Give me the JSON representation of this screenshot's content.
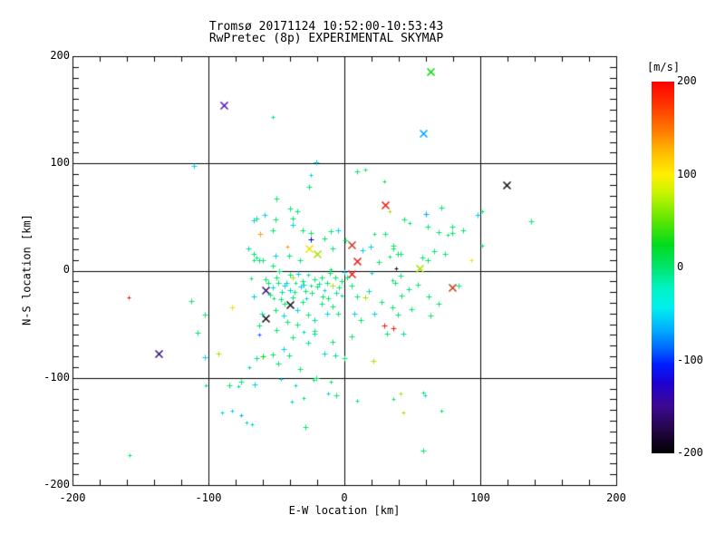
{
  "title": {
    "line1": "Tromsø 20171124 10:52:00-10:53:43",
    "line2": "RwPretec (8p) EXPERIMENTAL SKYMAP"
  },
  "axes": {
    "x_label": "E-W location [km]",
    "y_label": "N-S location [km]",
    "x_ticks": [
      "-200",
      "-100",
      "0",
      "100",
      "200"
    ],
    "y_ticks": [
      "200",
      "100",
      "0",
      "-100",
      "-200"
    ]
  },
  "colorbar": {
    "label": "[m/s]",
    "ticks": [
      "200",
      "100",
      "0",
      "-100",
      "-200"
    ],
    "value_range": [
      -200,
      200
    ],
    "stops": [
      [
        0.0,
        "#ff0000"
      ],
      [
        0.06,
        "#ff3300"
      ],
      [
        0.13,
        "#ff7700"
      ],
      [
        0.19,
        "#ffbb00"
      ],
      [
        0.25,
        "#ffee00"
      ],
      [
        0.3,
        "#c8f400"
      ],
      [
        0.37,
        "#62e600"
      ],
      [
        0.44,
        "#00dc1e"
      ],
      [
        0.5,
        "#00e46e"
      ],
      [
        0.56,
        "#00f4c8"
      ],
      [
        0.61,
        "#00eeee"
      ],
      [
        0.67,
        "#00aaff"
      ],
      [
        0.72,
        "#0064ff"
      ],
      [
        0.76,
        "#001eff"
      ],
      [
        0.81,
        "#1e00d2"
      ],
      [
        0.87,
        "#3c0896"
      ],
      [
        0.93,
        "#28064e"
      ],
      [
        1.0,
        "#000000"
      ]
    ]
  },
  "chart_data": {
    "type": "scatter",
    "title": "Tromsø 20171124 10:52:00-10:53:43",
    "subtitle": "RwPretec (8p) EXPERIMENTAL SKYMAP",
    "xlabel": "E-W location [km]",
    "ylabel": "N-S location [km]",
    "color_scale_label": "[m/s]",
    "xlim": [
      -200,
      200
    ],
    "ylim": [
      -200,
      200
    ],
    "grid": true,
    "grid_lines": [
      -100,
      0,
      100
    ],
    "minor_tick_step_x": 20,
    "minor_tick_step_y": 10,
    "palette": {
      "g": "#00e868",
      "G": "#00dd00",
      "t": "#00d9a3",
      "c": "#00cfe0",
      "C": "#00a2ff",
      "b": "#2255ff",
      "B": "#0000d0",
      "Y": "#a8e000",
      "y": "#f0e000",
      "o": "#ff9a00",
      "r": "#ee1a10",
      "R": "#c83c1e",
      "k": "#101010",
      "P": "#5a14b4",
      "D": "#38127a"
    },
    "points_format": "[x_km, y_km, color_key, marker] ; marker x=large cross, +=plus, s=small plus ; color_key maps Doppler velocity colour via palette",
    "points": [
      [
        -89,
        154,
        "P",
        "x"
      ],
      [
        63,
        186,
        "G",
        "x"
      ],
      [
        58,
        128,
        "C",
        "x"
      ],
      [
        119,
        80,
        "k",
        "x"
      ],
      [
        30,
        61,
        "r",
        "x"
      ],
      [
        79,
        -16,
        "R",
        "x"
      ],
      [
        5,
        24,
        "R",
        "x"
      ],
      [
        9,
        9,
        "r",
        "x"
      ],
      [
        5,
        -3,
        "r",
        "x"
      ],
      [
        -26,
        21,
        "y",
        "x"
      ],
      [
        -20,
        16,
        "Y",
        "x"
      ],
      [
        55,
        2,
        "Y",
        "x"
      ],
      [
        -58,
        -18,
        "D",
        "x"
      ],
      [
        -40,
        -32,
        "k",
        "x"
      ],
      [
        -58,
        -44,
        "k",
        "x"
      ],
      [
        -137,
        -77,
        "D",
        "x"
      ],
      [
        -159,
        -25,
        "r",
        "s"
      ],
      [
        29,
        -51,
        "r",
        "+"
      ],
      [
        36,
        -54,
        "r",
        "+"
      ],
      [
        38,
        2,
        "k",
        "s"
      ],
      [
        -62,
        34,
        "o",
        "+"
      ],
      [
        -42,
        22,
        "o",
        "s"
      ],
      [
        -83,
        -34,
        "y",
        "+"
      ],
      [
        93,
        10,
        "y",
        "s"
      ],
      [
        -38,
        -6,
        "Y",
        "+"
      ],
      [
        -9,
        -14,
        "Y",
        "+"
      ],
      [
        15,
        -25,
        "Y",
        "+"
      ],
      [
        -93,
        -77,
        "Y",
        "+"
      ],
      [
        21,
        -84,
        "Y",
        "+"
      ],
      [
        33,
        55,
        "Y",
        "s"
      ],
      [
        43,
        -132,
        "Y",
        "s"
      ],
      [
        -25,
        29,
        "B",
        "+"
      ],
      [
        60,
        53,
        "C",
        "+"
      ],
      [
        -63,
        -60,
        "b",
        "s"
      ],
      [
        -76,
        -135,
        "C",
        "s"
      ],
      [
        -111,
        98,
        "c",
        "+"
      ],
      [
        -21,
        101,
        "c",
        "+"
      ],
      [
        -53,
        143,
        "t",
        "s"
      ],
      [
        -25,
        89,
        "c",
        "s"
      ],
      [
        -26,
        78,
        "g",
        "+"
      ],
      [
        9,
        93,
        "g",
        "+"
      ],
      [
        15,
        94,
        "g",
        "s"
      ],
      [
        29,
        83,
        "g",
        "s"
      ],
      [
        -50,
        67,
        "g",
        "+"
      ],
      [
        137,
        46,
        "g",
        "+"
      ],
      [
        101,
        55,
        "g",
        "s"
      ],
      [
        98,
        52,
        "c",
        "+"
      ],
      [
        101,
        23,
        "g",
        "s"
      ],
      [
        71,
        59,
        "g",
        "+"
      ],
      [
        79,
        41,
        "g",
        "+"
      ],
      [
        61,
        41,
        "g",
        "+"
      ],
      [
        76,
        33,
        "g",
        "s"
      ],
      [
        66,
        18,
        "g",
        "+"
      ],
      [
        74,
        16,
        "g",
        "+"
      ],
      [
        61,
        10,
        "g",
        "+"
      ],
      [
        87,
        38,
        "g",
        "+"
      ],
      [
        79,
        35,
        "g",
        "+"
      ],
      [
        69,
        36,
        "g",
        "+"
      ],
      [
        84,
        -14,
        "g",
        "+"
      ],
      [
        57,
        12,
        "g",
        "+"
      ],
      [
        -65,
        49,
        "g",
        "+"
      ],
      [
        -59,
        52,
        "c",
        "+"
      ],
      [
        -67,
        47,
        "c",
        "+"
      ],
      [
        -40,
        58,
        "g",
        "+"
      ],
      [
        -38,
        49,
        "g",
        "+"
      ],
      [
        -38,
        43,
        "c",
        "+"
      ],
      [
        -35,
        55,
        "g",
        "+"
      ],
      [
        -51,
        48,
        "g",
        "+"
      ],
      [
        -53,
        38,
        "g",
        "+"
      ],
      [
        -31,
        38,
        "g",
        "+"
      ],
      [
        -25,
        35,
        "g",
        "+"
      ],
      [
        44,
        48,
        "g",
        "+"
      ],
      [
        48,
        44,
        "g",
        "s"
      ],
      [
        13,
        19,
        "c",
        "+"
      ],
      [
        19,
        22,
        "c",
        "+"
      ],
      [
        36,
        21,
        "g",
        "+"
      ],
      [
        39,
        16,
        "g",
        "+"
      ],
      [
        30,
        34,
        "g",
        "+"
      ],
      [
        22,
        34,
        "g",
        "s"
      ],
      [
        36,
        23,
        "g",
        "+"
      ],
      [
        41,
        16,
        "g",
        "+"
      ],
      [
        54,
        -13,
        "g",
        "+"
      ],
      [
        -10,
        37,
        "g",
        "+"
      ],
      [
        -5,
        38,
        "c",
        "+"
      ],
      [
        -15,
        30,
        "g",
        "+"
      ],
      [
        -9,
        21,
        "g",
        "+"
      ],
      [
        1,
        28,
        "g",
        "+"
      ],
      [
        -71,
        21,
        "t",
        "+"
      ],
      [
        -67,
        16,
        "g",
        "+"
      ],
      [
        -63,
        10,
        "g",
        "+"
      ],
      [
        -53,
        5,
        "g",
        "+"
      ],
      [
        -65,
        12,
        "t",
        "s"
      ],
      [
        -67,
        10,
        "g",
        "s"
      ],
      [
        -60,
        10,
        "g",
        "+"
      ],
      [
        -51,
        14,
        "c",
        "+"
      ],
      [
        -41,
        14,
        "g",
        "+"
      ],
      [
        -33,
        10,
        "g",
        "+"
      ],
      [
        25,
        8,
        "g",
        "+"
      ],
      [
        20,
        -2,
        "c",
        "s"
      ],
      [
        -69,
        -7,
        "g",
        "s"
      ],
      [
        -56,
        -11,
        "g",
        "+"
      ],
      [
        -53,
        -16,
        "c",
        "+"
      ],
      [
        -50,
        -6,
        "g",
        "+"
      ],
      [
        -48,
        0,
        "g",
        "+"
      ],
      [
        -44,
        -14,
        "c",
        "+"
      ],
      [
        -43,
        -11,
        "c",
        "+"
      ],
      [
        -40,
        -18,
        "c",
        "+"
      ],
      [
        -40,
        -4,
        "g",
        "+"
      ],
      [
        -36,
        -11,
        "g",
        "s"
      ],
      [
        -32,
        -15,
        "c",
        "+"
      ],
      [
        -31,
        -10,
        "g",
        "+"
      ],
      [
        -29,
        -19,
        "g",
        "+"
      ],
      [
        -27,
        -4,
        "t",
        "s"
      ],
      [
        -25,
        -14,
        "g",
        "s"
      ],
      [
        -22,
        -8,
        "g",
        "+"
      ],
      [
        -20,
        -15,
        "g",
        "+"
      ],
      [
        -17,
        -6,
        "g",
        "+"
      ],
      [
        -15,
        -18,
        "c",
        "s"
      ],
      [
        -13,
        -11,
        "g",
        "+"
      ],
      [
        -11,
        -2,
        "g",
        "+"
      ],
      [
        -7,
        -6,
        "g",
        "+"
      ],
      [
        -4,
        -16,
        "g",
        "+"
      ],
      [
        -2,
        -23,
        "t",
        "s"
      ],
      [
        0,
        -1,
        "c",
        "+"
      ],
      [
        -10,
        1,
        "g",
        "s"
      ],
      [
        -52,
        -26,
        "g",
        "s"
      ],
      [
        -47,
        -27,
        "g",
        "+"
      ],
      [
        -38,
        -25,
        "t",
        "+"
      ],
      [
        -28,
        -26,
        "c",
        "s"
      ],
      [
        -67,
        -24,
        "c",
        "+"
      ],
      [
        -63,
        -51,
        "g",
        "+"
      ],
      [
        -61,
        -40,
        "t",
        "+"
      ],
      [
        -51,
        -37,
        "g",
        "+"
      ],
      [
        -45,
        -42,
        "c",
        "+"
      ],
      [
        -42,
        -48,
        "g",
        "+"
      ],
      [
        -35,
        -37,
        "c",
        "+"
      ],
      [
        -31,
        -29,
        "g",
        "+"
      ],
      [
        -27,
        -41,
        "g",
        "+"
      ],
      [
        -22,
        -46,
        "t",
        "+"
      ],
      [
        -17,
        -31,
        "g",
        "+"
      ],
      [
        -13,
        -40,
        "c",
        "+"
      ],
      [
        -9,
        -33,
        "g",
        "+"
      ],
      [
        -5,
        -40,
        "g",
        "+"
      ],
      [
        -35,
        -50,
        "g",
        "+"
      ],
      [
        -50,
        -55,
        "g",
        "+"
      ],
      [
        -22,
        -56,
        "g",
        "+"
      ],
      [
        -30,
        -57,
        "t",
        "s"
      ],
      [
        5,
        -14,
        "g",
        "+"
      ],
      [
        9,
        -24,
        "g",
        "+"
      ],
      [
        7,
        -40,
        "c",
        "+"
      ],
      [
        12,
        -46,
        "g",
        "+"
      ],
      [
        18,
        -19,
        "t",
        "+"
      ],
      [
        22,
        -40,
        "c",
        "+"
      ],
      [
        27,
        -29,
        "g",
        "+"
      ],
      [
        35,
        -34,
        "g",
        "+"
      ],
      [
        39,
        -41,
        "g",
        "+"
      ],
      [
        42,
        -23,
        "g",
        "+"
      ],
      [
        49,
        -36,
        "g",
        "+"
      ],
      [
        62,
        -24,
        "g",
        "+"
      ],
      [
        69,
        -31,
        "g",
        "+"
      ],
      [
        63,
        -42,
        "g",
        "+"
      ],
      [
        41,
        -5,
        "g",
        "+"
      ],
      [
        35,
        -9,
        "g",
        "s"
      ],
      [
        37,
        -11,
        "g",
        "+"
      ],
      [
        47,
        -17,
        "g",
        "+"
      ],
      [
        33,
        13,
        "g",
        "s"
      ],
      [
        -38,
        -62,
        "g",
        "+"
      ],
      [
        -22,
        -59,
        "t",
        "+"
      ],
      [
        -9,
        -66,
        "g",
        "+"
      ],
      [
        5,
        -61,
        "g",
        "+"
      ],
      [
        31,
        -59,
        "g",
        "+"
      ],
      [
        43,
        -59,
        "t",
        "+"
      ],
      [
        -53,
        -78,
        "g",
        "+"
      ],
      [
        -41,
        -79,
        "g",
        "+"
      ],
      [
        -45,
        -73,
        "c",
        "+"
      ],
      [
        -27,
        -67,
        "t",
        "+"
      ],
      [
        -15,
        -77,
        "c",
        "+"
      ],
      [
        -7,
        -79,
        "t",
        "+"
      ],
      [
        0,
        -82,
        "g",
        "+"
      ],
      [
        -33,
        -92,
        "g",
        "+"
      ],
      [
        -21,
        -100,
        "g",
        "+"
      ],
      [
        -49,
        -87,
        "g",
        "+"
      ],
      [
        -60,
        -80,
        "G",
        "+"
      ],
      [
        -65,
        -82,
        "t",
        "+"
      ],
      [
        -70,
        -90,
        "t",
        "s"
      ],
      [
        -113,
        -28,
        "g",
        "+"
      ],
      [
        -108,
        -58,
        "g",
        "+"
      ],
      [
        -103,
        -41,
        "g",
        "+"
      ],
      [
        -103,
        -81,
        "c",
        "+"
      ],
      [
        -158,
        -172,
        "g",
        "s"
      ],
      [
        -102,
        -107,
        "t",
        "s"
      ],
      [
        -85,
        -107,
        "g",
        "+"
      ],
      [
        -76,
        -104,
        "g",
        "+"
      ],
      [
        -78,
        -108,
        "t",
        "s"
      ],
      [
        -66,
        -106,
        "c",
        "+"
      ],
      [
        -36,
        -107,
        "c",
        "s"
      ],
      [
        -39,
        -122,
        "c",
        "s"
      ],
      [
        -30,
        -119,
        "g",
        "s"
      ],
      [
        -12,
        -115,
        "c",
        "s"
      ],
      [
        -6,
        -116,
        "g",
        "+"
      ],
      [
        -23,
        -102,
        "g",
        "s"
      ],
      [
        -10,
        -104,
        "g",
        "s"
      ],
      [
        -47,
        -101,
        "c",
        "s"
      ],
      [
        -90,
        -132,
        "c",
        "s"
      ],
      [
        -83,
        -131,
        "c",
        "s"
      ],
      [
        -72,
        -142,
        "c",
        "s"
      ],
      [
        -68,
        -143,
        "c",
        "s"
      ],
      [
        -29,
        -146,
        "g",
        "+"
      ],
      [
        9,
        -121,
        "g",
        "s"
      ],
      [
        36,
        -120,
        "g",
        "s"
      ],
      [
        41,
        -115,
        "Y",
        "s"
      ],
      [
        58,
        -114,
        "g",
        "s"
      ],
      [
        59,
        -116,
        "c",
        "s"
      ],
      [
        71,
        -131,
        "g",
        "s"
      ],
      [
        58,
        -168,
        "g",
        "+"
      ],
      [
        -58,
        -8,
        "g",
        "+"
      ],
      [
        -46,
        -20,
        "t",
        "+"
      ],
      [
        -34,
        -3,
        "c",
        "+"
      ],
      [
        -24,
        -21,
        "g",
        "+"
      ],
      [
        -19,
        -12,
        "t",
        "+"
      ],
      [
        -55,
        -22,
        "g",
        "+"
      ],
      [
        -49,
        -11,
        "g",
        "+"
      ],
      [
        -37,
        -20,
        "g",
        "+"
      ],
      [
        -30,
        -13,
        "c",
        "+"
      ],
      [
        -12,
        -26,
        "g",
        "+"
      ],
      [
        -6,
        -21,
        "t",
        "+"
      ],
      [
        -2,
        -10,
        "g",
        "+"
      ],
      [
        2,
        -6,
        "g",
        "+"
      ],
      [
        -44,
        -31,
        "g",
        "+"
      ],
      [
        -16,
        -24,
        "g",
        "+"
      ]
    ]
  }
}
